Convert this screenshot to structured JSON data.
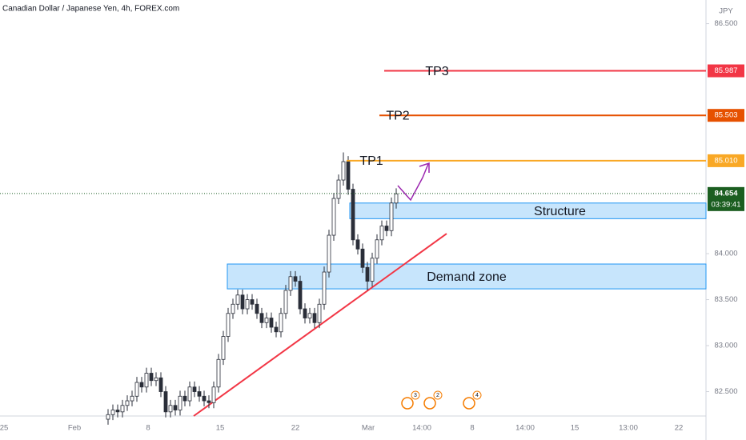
{
  "chart_data": {
    "type": "candlestick",
    "title": "Canadian Dollar / Japanese Yen, 4h, FOREX.com",
    "currency": "JPY",
    "ylim": [
      82.235,
      86.757
    ],
    "yticks": [
      {
        "value": 82.5,
        "label": "82.500"
      },
      {
        "value": 83,
        "label": "83.000"
      },
      {
        "value": 83.5,
        "label": "83.500"
      },
      {
        "value": 84,
        "label": "84.000"
      },
      {
        "value": 86.5,
        "label": "86.500"
      }
    ],
    "xticks": [
      "25",
      "Feb",
      "8",
      "15",
      "22",
      "Mar",
      "14:00",
      "8",
      "14:00",
      "15",
      "13:00",
      "22"
    ],
    "up_color": "#ffffff",
    "down_color": "#2a2e39",
    "open": [
      82.2,
      82.25,
      82.3,
      82.28,
      82.35,
      82.4,
      82.45,
      82.6,
      82.55,
      82.7,
      82.62,
      82.65,
      82.5,
      82.28,
      82.35,
      82.3,
      82.45,
      82.4,
      82.55,
      82.5,
      82.45,
      82.4,
      82.38,
      82.55,
      82.85,
      83.1,
      83.35,
      83.45,
      83.55,
      83.4,
      83.5,
      83.45,
      83.35,
      83.25,
      83.3,
      83.2,
      83.15,
      83.35,
      83.6,
      83.75,
      83.7,
      83.4,
      83.3,
      83.35,
      83.25,
      83.45,
      83.8,
      84.2,
      84.6,
      84.8,
      85.0,
      84.7,
      84.15,
      84.05,
      83.85,
      83.7,
      83.95,
      84.15,
      84.3,
      84.25,
      84.55
    ],
    "high": [
      82.31,
      82.36,
      82.36,
      82.41,
      82.46,
      82.51,
      82.66,
      82.66,
      82.76,
      82.76,
      82.71,
      82.71,
      82.56,
      82.41,
      82.41,
      82.51,
      82.51,
      82.61,
      82.61,
      82.56,
      82.51,
      82.46,
      82.61,
      82.91,
      83.16,
      83.41,
      83.51,
      83.61,
      83.61,
      83.56,
      83.56,
      83.51,
      83.41,
      83.36,
      83.36,
      83.26,
      83.41,
      83.66,
      83.81,
      83.81,
      83.76,
      83.46,
      83.41,
      83.41,
      83.51,
      83.86,
      84.26,
      84.66,
      84.86,
      85.1,
      85.06,
      84.76,
      84.21,
      84.11,
      83.91,
      84.01,
      84.21,
      84.36,
      84.36,
      84.61,
      84.71
    ],
    "low": [
      82.14,
      82.19,
      82.22,
      82.22,
      82.29,
      82.34,
      82.39,
      82.49,
      82.49,
      82.56,
      82.56,
      82.44,
      82.22,
      82.22,
      82.24,
      82.24,
      82.34,
      82.34,
      82.44,
      82.39,
      82.34,
      82.32,
      82.32,
      82.49,
      82.79,
      83.04,
      83.29,
      83.39,
      83.34,
      83.34,
      83.39,
      83.29,
      83.19,
      83.19,
      83.14,
      83.09,
      83.09,
      83.29,
      83.54,
      83.64,
      83.34,
      83.24,
      83.24,
      83.19,
      83.19,
      83.39,
      83.74,
      84.14,
      84.54,
      84.74,
      84.64,
      84.09,
      83.99,
      83.79,
      83.6,
      83.64,
      83.89,
      84.09,
      84.19,
      84.19,
      84.49
    ],
    "close": [
      82.25,
      82.3,
      82.28,
      82.35,
      82.4,
      82.45,
      82.6,
      82.55,
      82.7,
      82.62,
      82.65,
      82.5,
      82.28,
      82.35,
      82.3,
      82.45,
      82.4,
      82.55,
      82.5,
      82.45,
      82.4,
      82.38,
      82.55,
      82.85,
      83.1,
      83.35,
      83.45,
      83.55,
      83.4,
      83.5,
      83.45,
      83.35,
      83.25,
      83.3,
      83.2,
      83.15,
      83.35,
      83.6,
      83.75,
      83.7,
      83.4,
      83.3,
      83.35,
      83.25,
      83.45,
      83.8,
      84.2,
      84.6,
      84.8,
      85.0,
      84.7,
      84.15,
      84.05,
      83.85,
      83.7,
      83.95,
      84.15,
      84.3,
      84.25,
      84.55,
      84.65
    ],
    "levels": [
      {
        "name": "TP3",
        "value": 85.987,
        "label": "85.987",
        "color": "#f23645"
      },
      {
        "name": "TP2",
        "value": 85.503,
        "label": "85.503",
        "color": "#e65100"
      },
      {
        "name": "TP1",
        "value": 85.01,
        "label": "85.010",
        "color": "#f9a825"
      }
    ],
    "current": {
      "value": 84.654,
      "countdown": "03:39:41",
      "color": "#1b5e20"
    },
    "zones": [
      {
        "name": "Structure",
        "top": 84.55,
        "bottom": 84.38
      },
      {
        "name": "Demand zone",
        "top": 83.887,
        "bottom": 83.617
      }
    ],
    "trendline": {
      "start": 82.235,
      "end": 84.217,
      "color": "#f23645"
    },
    "events": [
      "3",
      "2",
      "4"
    ]
  }
}
